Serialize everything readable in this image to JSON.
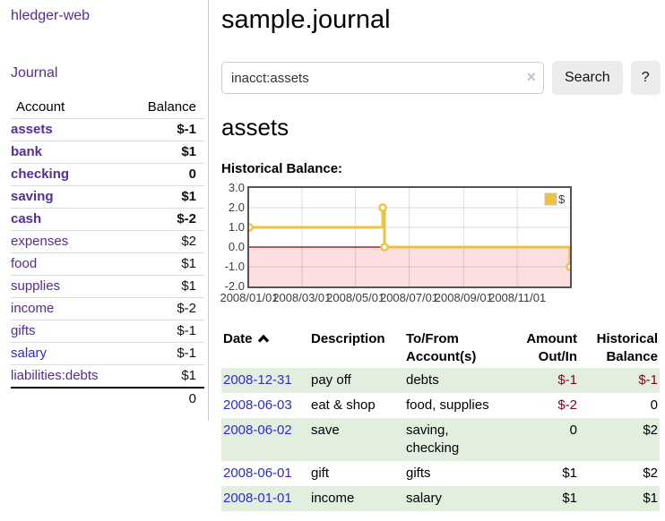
{
  "app": {
    "title": "hledger-web"
  },
  "sidebar": {
    "journal_link": "Journal",
    "accounts_table": {
      "headers": {
        "account": "Account",
        "balance": "Balance"
      },
      "rows": [
        {
          "name": "assets",
          "balance": "$-1",
          "indent": 1,
          "bold": true,
          "neg": "strong",
          "link": "purple"
        },
        {
          "name": "bank",
          "balance": "$1",
          "indent": 2,
          "bold": true,
          "neg": "none",
          "link": "purple"
        },
        {
          "name": "checking",
          "balance": "0",
          "indent": 3,
          "bold": true,
          "neg": "none",
          "link": "purple"
        },
        {
          "name": "saving",
          "balance": "$1",
          "indent": 3,
          "bold": true,
          "neg": "none",
          "link": "purple"
        },
        {
          "name": "cash",
          "balance": "$-2",
          "indent": 2,
          "bold": true,
          "neg": "strong",
          "link": "purple"
        },
        {
          "name": "expenses",
          "balance": "$2",
          "indent": 1,
          "bold": false,
          "neg": "none",
          "link": "purple"
        },
        {
          "name": "food",
          "balance": "$1",
          "indent": 2,
          "bold": false,
          "neg": "none",
          "link": "purple"
        },
        {
          "name": "supplies",
          "balance": "$1",
          "indent": 2,
          "bold": false,
          "neg": "none",
          "link": "purple"
        },
        {
          "name": "income",
          "balance": "$-2",
          "indent": 1,
          "bold": false,
          "neg": "muted",
          "link": "purple"
        },
        {
          "name": "gifts",
          "balance": "$-1",
          "indent": 2,
          "bold": false,
          "neg": "muted",
          "link": "purple"
        },
        {
          "name": "salary",
          "balance": "$-1",
          "indent": 2,
          "bold": false,
          "neg": "muted",
          "link": "blue"
        },
        {
          "name": "liabilities:debts",
          "balance": "$1",
          "indent": 1,
          "bold": false,
          "neg": "none",
          "link": "purple"
        }
      ],
      "total": "0"
    }
  },
  "header": {
    "title": "sample.journal"
  },
  "search": {
    "value": "inacct:assets",
    "clear_icon": "×",
    "button": "Search",
    "help_button": "?"
  },
  "account_page": {
    "heading": "assets",
    "chart_title": "Historical Balance:"
  },
  "chart_data": {
    "type": "line",
    "title": "Historical Balance:",
    "series": [
      {
        "name": "$",
        "color": "#edc240",
        "step": true,
        "points": [
          [
            "2008-01-01",
            1
          ],
          [
            "2008-06-01",
            2
          ],
          [
            "2008-06-03",
            0
          ],
          [
            "2008-12-31",
            -1
          ]
        ]
      }
    ],
    "x_range": [
      "2008-01-01",
      "2008-12-31"
    ],
    "x_ticks": [
      "2008/01/01",
      "2008/03/01",
      "2008/05/01",
      "2008/07/01",
      "2008/09/01",
      "2008/11/01"
    ],
    "y_ticks": [
      3.0,
      2.0,
      1.0,
      0.0,
      -1.0,
      -2.0
    ],
    "y_tick_labels": [
      "3.0",
      "2.0",
      "1.0",
      "0.0",
      "-1.0",
      "-2.0"
    ],
    "ylim": [
      -2,
      3
    ],
    "legend": {
      "label": "$",
      "position": "top-right"
    },
    "grid": true,
    "negative_region_color": "#fcdede",
    "zero_line_color": "#8b0000",
    "marker_fill": "#ffffff"
  },
  "register": {
    "headers": [
      [
        "Date"
      ],
      [
        "Description"
      ],
      [
        "To/From",
        "Account(s)"
      ],
      [
        "Amount",
        "Out/In"
      ],
      [
        "Historical",
        "Balance"
      ]
    ],
    "sort": {
      "column": "Date",
      "direction": "ascending"
    },
    "rows": [
      {
        "date": "2008-12-31",
        "description": "pay off",
        "accounts_lines": [
          "debts"
        ],
        "amount": "$-1",
        "balance": "$-1",
        "amount_neg": true,
        "balance_neg": true
      },
      {
        "date": "2008-06-03",
        "description": "eat & shop",
        "accounts_lines": [
          "food, supplies"
        ],
        "amount": "$-2",
        "balance": "0",
        "amount_neg": true,
        "balance_neg": false
      },
      {
        "date": "2008-06-02",
        "description": "save",
        "accounts_lines": [
          "saving,",
          "checking"
        ],
        "amount": "0",
        "balance": "$2",
        "amount_neg": false,
        "balance_neg": false
      },
      {
        "date": "2008-06-01",
        "description": "gift",
        "accounts_lines": [
          "gifts"
        ],
        "amount": "$1",
        "balance": "$2",
        "amount_neg": false,
        "balance_neg": false
      },
      {
        "date": "2008-01-01",
        "description": "income",
        "accounts_lines": [
          "salary"
        ],
        "amount": "$1",
        "balance": "$1",
        "amount_neg": false,
        "balance_neg": false
      }
    ]
  },
  "colors": {
    "link_purple": "#552c9c",
    "link_blue": "#2b2bd5",
    "negative_strong": "#8b0022",
    "negative_muted": "#c38e96",
    "row_stripe_green": "#e2efdf",
    "series_gold": "#edc240",
    "negative_region_pink": "#fcdede",
    "zero_line_red": "#8b0000"
  }
}
